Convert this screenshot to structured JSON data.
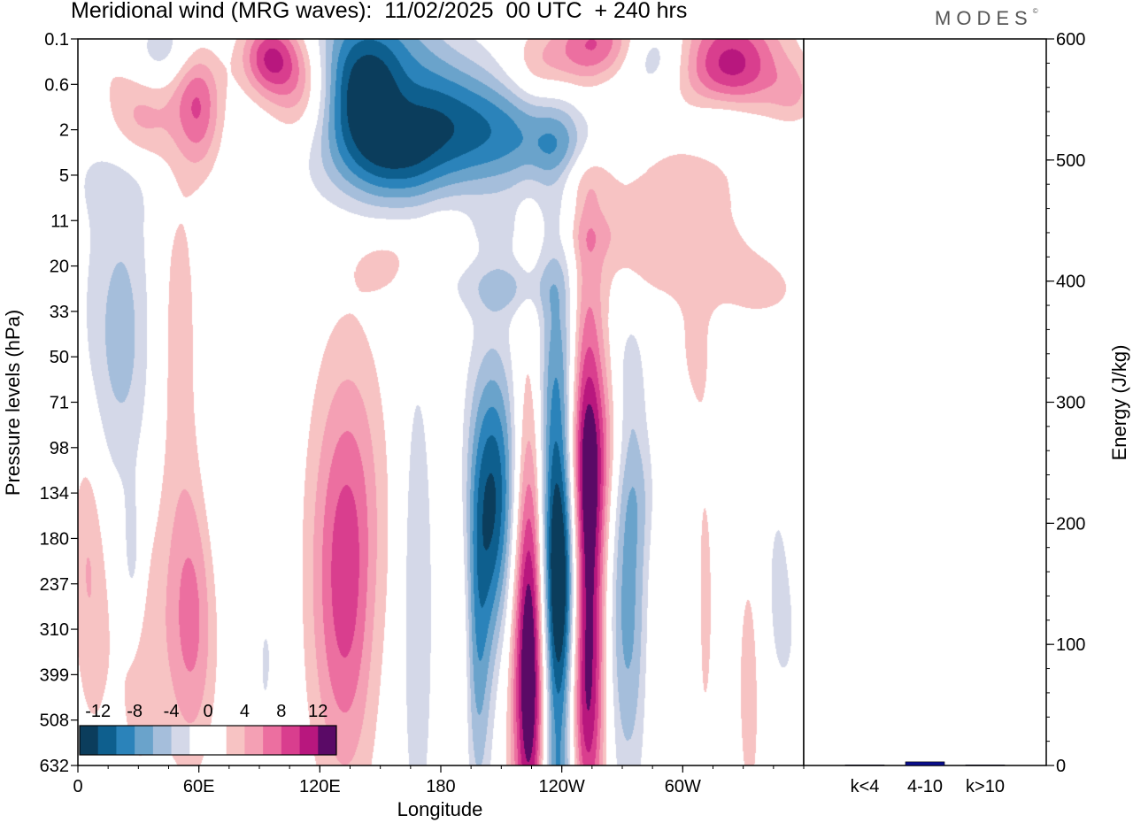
{
  "header": {
    "title": "Meridional wind (MRG waves):  11/02/2025  00 UTC  + 240 hrs",
    "logo_text": "MODES",
    "logo_mark": "©"
  },
  "chart_data": [
    {
      "type": "heatmap",
      "title": "Meridional wind (MRG waves):  11/02/2025  00 UTC  + 240 hrs",
      "xlabel": "Longitude",
      "ylabel": "Pressure levels (hPa)",
      "x_tick_labels": [
        "0",
        "60E",
        "120E",
        "180",
        "120W",
        "60W"
      ],
      "x_tick_lon": [
        0,
        60,
        120,
        180,
        240,
        300
      ],
      "xlim": [
        0,
        360
      ],
      "y_tick_labels": [
        "0.1",
        "0.6",
        "2",
        "5",
        "11",
        "20",
        "33",
        "50",
        "71",
        "98",
        "134",
        "180",
        "237",
        "310",
        "399",
        "508",
        "632"
      ],
      "colorbar": {
        "labels": [
          "-12",
          "-8",
          "-4",
          "0",
          "4",
          "8",
          "12"
        ],
        "colors": [
          "#0b3d5c",
          "#0e5f8e",
          "#2b83ba",
          "#6aa3cb",
          "#a5bedb",
          "#d4d8e8",
          "#ffffff",
          "#ffffff",
          "#f7c3c3",
          "#f4a0b4",
          "#ec6fa0",
          "#d93e8e",
          "#b8177e",
          "#5a0a66"
        ],
        "placement": "bottom-left"
      },
      "blobs": [
        {
          "lon": 22,
          "lev": 6.6,
          "w": 14,
          "h": 2.6,
          "v": -5
        },
        {
          "lon": 30,
          "lev": 13.4,
          "w": 9,
          "h": 2.5,
          "v": 3
        },
        {
          "lon": 48,
          "lev": 6.5,
          "w": 10,
          "h": 3,
          "v": 3.5
        },
        {
          "lon": 57,
          "lev": 12.8,
          "w": 10,
          "h": 2.2,
          "v": 7
        },
        {
          "lon": 27,
          "lev": 11.6,
          "w": 4,
          "h": 1.2,
          "v": -4
        },
        {
          "lon": 68,
          "lev": 10.5,
          "w": 7,
          "h": 3.5,
          "v": -2
        },
        {
          "lon": 92,
          "lev": 13.8,
          "w": 5,
          "h": 2.5,
          "v": -2
        },
        {
          "lon": 102,
          "lev": 12.8,
          "w": 4,
          "h": 2.5,
          "v": -2
        },
        {
          "lon": 134,
          "lev": 11.8,
          "w": 13,
          "h": 3.2,
          "v": 10
        },
        {
          "lon": 146,
          "lev": 13,
          "w": 8,
          "h": 2.4,
          "v": -2
        },
        {
          "lon": 168,
          "lev": 12.5,
          "w": 6,
          "h": 4,
          "v": -4
        },
        {
          "lon": 190,
          "lev": 13.2,
          "w": 4,
          "h": 2.5,
          "v": 3
        },
        {
          "lon": 198,
          "lev": 13.8,
          "w": 5,
          "h": 2.5,
          "v": -6
        },
        {
          "lon": 206,
          "lev": 10.1,
          "w": 9,
          "h": 2.2,
          "v": -12
        },
        {
          "lon": 224,
          "lev": 12.5,
          "w": 5,
          "h": 5,
          "v": 4
        },
        {
          "lon": 225,
          "lev": 13.5,
          "w": 7,
          "h": 3.2,
          "v": 15
        },
        {
          "lon": 238,
          "lev": 12.9,
          "w": 8,
          "h": 4.5,
          "v": -22
        },
        {
          "lon": 252,
          "lev": 11.4,
          "w": 6.5,
          "h": 4.2,
          "v": 16
        },
        {
          "lon": 242,
          "lev": 15,
          "w": 10,
          "h": 1.7,
          "v": 8
        },
        {
          "lon": 247,
          "lev": 9.2,
          "w": 10,
          "h": 1.4,
          "v": 4
        },
        {
          "lon": 264,
          "lev": 9.2,
          "w": 6,
          "h": 1.5,
          "v": 3
        },
        {
          "lon": 272,
          "lev": 12.4,
          "w": 8,
          "h": 3,
          "v": -7
        },
        {
          "lon": 276,
          "lev": 10,
          "w": 8,
          "h": 1,
          "v": -2
        },
        {
          "lon": 290,
          "lev": 13.8,
          "w": 6,
          "h": 2.5,
          "v": 3
        },
        {
          "lon": 300,
          "lev": 12.8,
          "w": 6,
          "h": 2.5,
          "v": -3
        },
        {
          "lon": 309,
          "lev": 12.5,
          "w": 6,
          "h": 3.5,
          "v": 3
        },
        {
          "lon": 333,
          "lev": 14.2,
          "w": 5,
          "h": 2.5,
          "v": 3
        },
        {
          "lon": 350,
          "lev": 12.1,
          "w": 8,
          "h": 2,
          "v": -3
        },
        {
          "lon": 358,
          "lev": 10.3,
          "w": 5,
          "h": 1.5,
          "v": 3
        },
        {
          "lon": 4,
          "lev": 11,
          "w": 6,
          "h": 2,
          "v": 3
        },
        {
          "lon": 8,
          "lev": 13,
          "w": 7,
          "h": 2.5,
          "v": 2
        },
        {
          "lon": 12,
          "lev": 0.2,
          "w": 22,
          "h": 0.8,
          "v": 2
        },
        {
          "lon": 20,
          "lev": 3,
          "w": 18,
          "h": 0.7,
          "v": -2
        },
        {
          "lon": 30,
          "lev": 1.8,
          "w": 12,
          "h": 0.8,
          "v": 5
        },
        {
          "lon": 42,
          "lev": 0.3,
          "w": 12,
          "h": 0.6,
          "v": -5
        },
        {
          "lon": 60,
          "lev": 1.7,
          "w": 8,
          "h": 0.9,
          "v": 6
        },
        {
          "lon": 56,
          "lev": 0.9,
          "w": 10,
          "h": 0.7,
          "v": 3
        },
        {
          "lon": 95,
          "lev": 0.4,
          "w": 10,
          "h": 0.6,
          "v": 10
        },
        {
          "lon": 112,
          "lev": 1.1,
          "w": 12,
          "h": 0.9,
          "v": 9
        },
        {
          "lon": 143,
          "lev": 1,
          "w": 24,
          "h": 1.3,
          "v": -13
        },
        {
          "lon": 162,
          "lev": 1.2,
          "w": 10,
          "h": 0.7,
          "v": 3
        },
        {
          "lon": 195,
          "lev": 2,
          "w": 38,
          "h": 1,
          "v": -10
        },
        {
          "lon": 155,
          "lev": 2.8,
          "w": 18,
          "h": 0.7,
          "v": -4
        },
        {
          "lon": 182,
          "lev": 4.4,
          "w": 16,
          "h": 0.6,
          "v": 2
        },
        {
          "lon": 230,
          "lev": 0.7,
          "w": 14,
          "h": 0.6,
          "v": 5
        },
        {
          "lon": 258,
          "lev": 0.1,
          "w": 16,
          "h": 0.6,
          "v": 8
        },
        {
          "lon": 284,
          "lev": 0.35,
          "w": 12,
          "h": 0.6,
          "v": -5
        },
        {
          "lon": 324,
          "lev": 0.6,
          "w": 18,
          "h": 0.9,
          "v": 11
        },
        {
          "lon": 321,
          "lev": 1.7,
          "w": 14,
          "h": 0.5,
          "v": -5
        },
        {
          "lon": 295,
          "lev": 3.5,
          "w": 30,
          "h": 1.2,
          "v": 3
        },
        {
          "lon": 250,
          "lev": 3,
          "w": 12,
          "h": 0.5,
          "v": 3
        },
        {
          "lon": 240,
          "lev": 2.5,
          "w": 12,
          "h": 0.5,
          "v": -3
        },
        {
          "lon": 350,
          "lev": 3,
          "w": 10,
          "h": 0.7,
          "v": -2
        },
        {
          "lon": 355,
          "lev": 1.2,
          "w": 8,
          "h": 0.5,
          "v": 3
        },
        {
          "lon": 195,
          "lev": 5.2,
          "w": 28,
          "h": 0.6,
          "v": -2
        },
        {
          "lon": 215,
          "lev": 5.5,
          "w": 14,
          "h": 0.4,
          "v": -3
        },
        {
          "lon": 255,
          "lev": 4.3,
          "w": 14,
          "h": 0.4,
          "v": 2
        },
        {
          "lon": 300,
          "lev": 5,
          "w": 30,
          "h": 0.6,
          "v": 2
        },
        {
          "lon": 340,
          "lev": 5.6,
          "w": 16,
          "h": 0.5,
          "v": 2
        },
        {
          "lon": 350,
          "lev": 3.8,
          "w": 8,
          "h": 0.5,
          "v": 2
        },
        {
          "lon": 305,
          "lev": 6.8,
          "w": 7,
          "h": 1,
          "v": 2
        },
        {
          "lon": 274,
          "lev": 7.4,
          "w": 5,
          "h": 1,
          "v": -2
        },
        {
          "lon": 153,
          "lev": 5,
          "w": 12,
          "h": 0.5,
          "v": 3
        },
        {
          "lon": 205,
          "lev": 4.2,
          "w": 12,
          "h": 0.4,
          "v": -2
        }
      ]
    },
    {
      "type": "bar",
      "categories": [
        "k<4",
        "4-10",
        "k>10"
      ],
      "values": [
        0.5,
        3,
        0.5
      ],
      "ylabel": "Energy (J/kg)",
      "ylim": [
        0,
        600
      ],
      "y_tick_labels": [
        "0",
        "100",
        "200",
        "300",
        "400",
        "500",
        "600"
      ],
      "bar_color": "#0a0f8c"
    }
  ]
}
